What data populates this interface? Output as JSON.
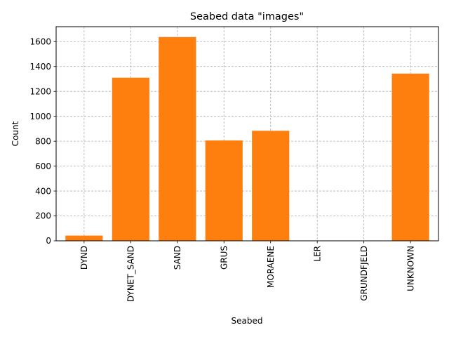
{
  "chart_data": {
    "type": "bar",
    "title": "Seabed data \"images\"",
    "xlabel": "Seabed",
    "ylabel": "Count",
    "categories": [
      "DYND",
      "DYNET_SAND",
      "SAND",
      "GRUS",
      "MORAENE",
      "LER",
      "GRUNDFJELD",
      "UNKNOWN"
    ],
    "values": [
      42,
      1310,
      1637,
      806,
      884,
      0,
      0,
      1343
    ],
    "ylim": [
      0,
      1720
    ],
    "yticks": [
      "0",
      "200",
      "400",
      "600",
      "800",
      "1000",
      "1200",
      "1400",
      "1600"
    ],
    "grid": true,
    "bar_color": "#ff7f0e",
    "grid_color": "#b0b0b0"
  }
}
